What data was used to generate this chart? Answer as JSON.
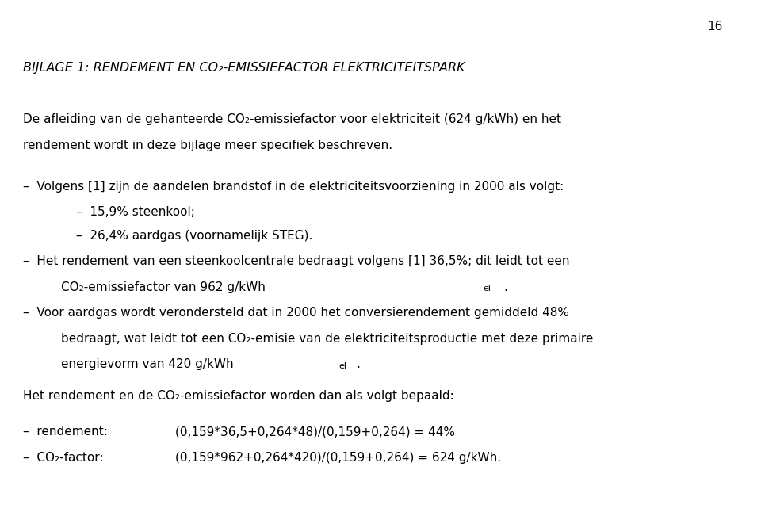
{
  "page_number": "16",
  "background_color": "#ffffff",
  "text_color": "#000000",
  "figsize": [
    9.6,
    6.51
  ],
  "dpi": 100,
  "title": "BIJLAGE 1: RENDEMENT EN CO₂-EMISSIEFACTOR ELEKTRICITEITSPARK",
  "para1": "De afleiding van de gehanteerde CO₂-emissiefactor voor elektriciteit (624 g/kWh) en het rendement wordt in deze bijlage meer specifiek beschreven.",
  "bullet1": "–  Volgens [1] zijn de aandelen brandstof in de elektriciteitsvoorziening in 2000 als volgt:",
  "sub1": "–  15,9% steenkool;",
  "sub2": "–  26,4% aardgas (voornamelijk STEG).",
  "bullet2a": "–  Het rendement van een steenkoolcentrale bedraagt volgens [1] 36,5%; dit leidt tot een",
  "bullet2b": "    CO₂-emissiefactor van 962 g/kWh",
  "bullet2b_sub": "el",
  "bullet2b_end": ".",
  "bullet3a": "–  Voor aardgas wordt verondersteld dat in 2000 het conversierendement gemiddeld 48%",
  "bullet3b": "    bedraagt, wat leidt tot een CO₂-emisie van de elektriciteitsproductie met deze primaire",
  "bullet3c": "    energievorm van 420 g/kWh",
  "bullet3c_sub": "el",
  "bullet3c_end": ".",
  "para2": "Het rendement en de CO₂-emissiefactor worden dan als volgt bepaald:",
  "calc1a": "–  rendement:",
  "calc1b": "(0,159*36,5+0,264*48)/(0,159+0,264) = 44%",
  "calc2a": "–  CO₂-factor:",
  "calc2b": "(0,159*962+0,264*420)/(0,159+0,264) = 624 g/kWh."
}
